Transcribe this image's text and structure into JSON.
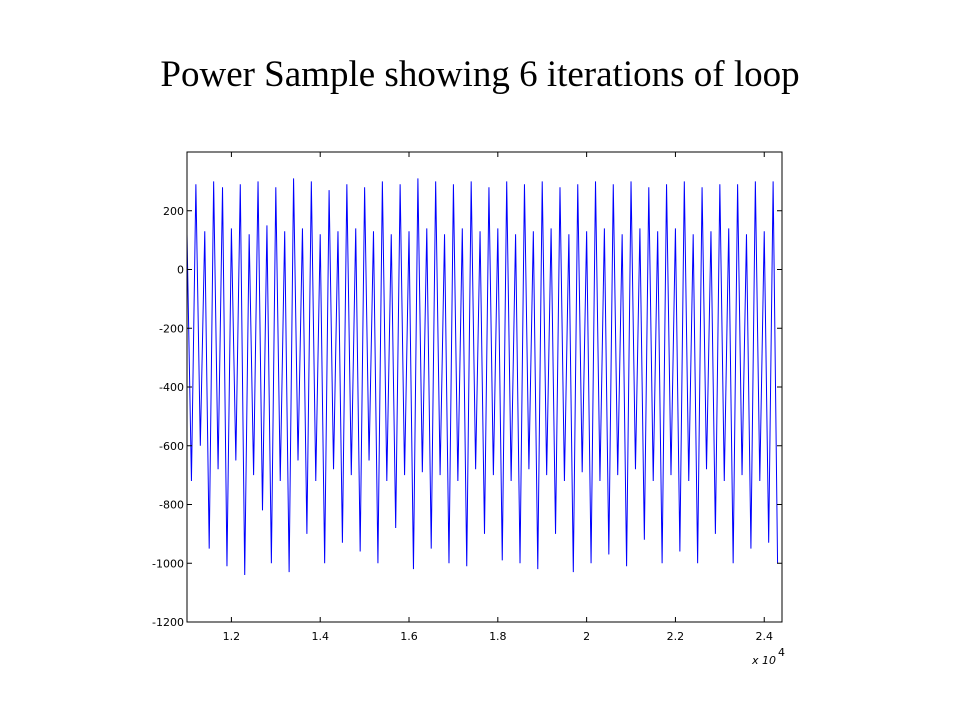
{
  "chart_data": {
    "type": "line",
    "title": "Power Sample showing 6 iterations of loop",
    "x_multiplier_label": "x 10",
    "x_multiplier_exponent": "4",
    "x": [
      1.1,
      1.11,
      1.12,
      1.13,
      1.14,
      1.15,
      1.16,
      1.17,
      1.18,
      1.19,
      1.2,
      1.21,
      1.22,
      1.23,
      1.24,
      1.25,
      1.26,
      1.27,
      1.28,
      1.29,
      1.3,
      1.31,
      1.32,
      1.33,
      1.34,
      1.35,
      1.36,
      1.37,
      1.38,
      1.39,
      1.4,
      1.41,
      1.42,
      1.43,
      1.44,
      1.45,
      1.46,
      1.47,
      1.48,
      1.49,
      1.5,
      1.51,
      1.52,
      1.53,
      1.54,
      1.55,
      1.56,
      1.57,
      1.58,
      1.59,
      1.6,
      1.61,
      1.62,
      1.63,
      1.64,
      1.65,
      1.66,
      1.67,
      1.68,
      1.69,
      1.7,
      1.71,
      1.72,
      1.73,
      1.74,
      1.75,
      1.76,
      1.77,
      1.78,
      1.79,
      1.8,
      1.81,
      1.82,
      1.83,
      1.84,
      1.85,
      1.86,
      1.87,
      1.88,
      1.89,
      1.9,
      1.91,
      1.92,
      1.93,
      1.94,
      1.95,
      1.96,
      1.97,
      1.98,
      1.99,
      2.0,
      2.01,
      2.02,
      2.03,
      2.04,
      2.05,
      2.06,
      2.07,
      2.08,
      2.09,
      2.1,
      2.11,
      2.12,
      2.13,
      2.14,
      2.15,
      2.16,
      2.17,
      2.18,
      2.19,
      2.2,
      2.21,
      2.22,
      2.23,
      2.24,
      2.25,
      2.26,
      2.27,
      2.28,
      2.29,
      2.3,
      2.31,
      2.32,
      2.33,
      2.34,
      2.35,
      2.36,
      2.37,
      2.38,
      2.39,
      2.4,
      2.41,
      2.42,
      2.43
    ],
    "series": [
      {
        "color": "#0000ff",
        "values": [
          120,
          -720,
          290,
          -600,
          130,
          -950,
          300,
          -680,
          280,
          -1010,
          140,
          -650,
          290,
          -1040,
          120,
          -700,
          300,
          -820,
          150,
          -1000,
          280,
          -720,
          130,
          -1030,
          310,
          -650,
          140,
          -900,
          300,
          -720,
          120,
          -1000,
          270,
          -680,
          130,
          -930,
          290,
          -700,
          140,
          -960,
          280,
          -650,
          130,
          -1000,
          300,
          -720,
          120,
          -880,
          290,
          -700,
          130,
          -1020,
          310,
          -690,
          140,
          -950,
          300,
          -700,
          120,
          -1000,
          290,
          -720,
          140,
          -1010,
          300,
          -680,
          130,
          -900,
          280,
          -700,
          140,
          -990,
          300,
          -720,
          120,
          -1000,
          290,
          -680,
          130,
          -1020,
          300,
          -700,
          140,
          -900,
          280,
          -720,
          120,
          -1030,
          290,
          -690,
          130,
          -1000,
          300,
          -720,
          140,
          -970,
          290,
          -700,
          120,
          -1010,
          300,
          -680,
          140,
          -920,
          280,
          -720,
          130,
          -1000,
          290,
          -700,
          140,
          -960,
          300,
          -720,
          120,
          -1000,
          280,
          -680,
          130,
          -900,
          290,
          -720,
          140,
          -1000,
          290,
          -700,
          120,
          -950,
          300,
          -720,
          130,
          -930,
          300,
          -1000
        ]
      }
    ],
    "xlim": [
      1.1,
      2.44
    ],
    "xticks": [
      1.2,
      1.4,
      1.6,
      1.8,
      2,
      2.2,
      2.4
    ],
    "ylim": [
      -1200,
      400
    ],
    "yticks": [
      -1200,
      -1000,
      -800,
      -600,
      -400,
      -200,
      0,
      200
    ],
    "grid": false
  }
}
